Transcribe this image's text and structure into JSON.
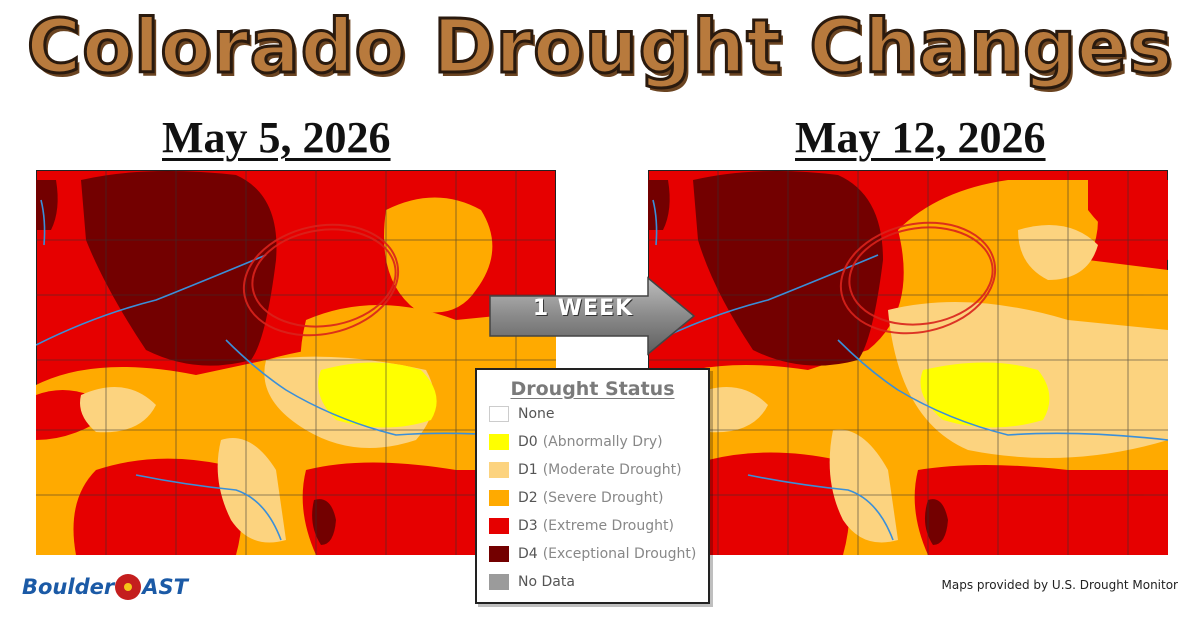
{
  "title": "Colorado Drought Changes",
  "maps": {
    "left_date": "May 5, 2026",
    "right_date": "May 12, 2026"
  },
  "arrow_label": "1 WEEK",
  "legend": {
    "title": "Drought Status",
    "items": [
      {
        "code": "None",
        "desc": "",
        "color": "#ffffff"
      },
      {
        "code": "D0",
        "desc": "(Abnormally Dry)",
        "color": "#ffff00"
      },
      {
        "code": "D1",
        "desc": "(Moderate Drought)",
        "color": "#fcd37f"
      },
      {
        "code": "D2",
        "desc": "(Severe Drought)",
        "color": "#ffaa00"
      },
      {
        "code": "D3",
        "desc": "(Extreme Drought)",
        "color": "#e60000"
      },
      {
        "code": "D4",
        "desc": "(Exceptional Drought)",
        "color": "#730000"
      },
      {
        "code": "No Data",
        "desc": "",
        "color": "#9b9b9b"
      }
    ]
  },
  "brand": {
    "part1": "Boulder",
    "part2": "AST"
  },
  "credit": "Maps provided by U.S. Drought Monitor"
}
